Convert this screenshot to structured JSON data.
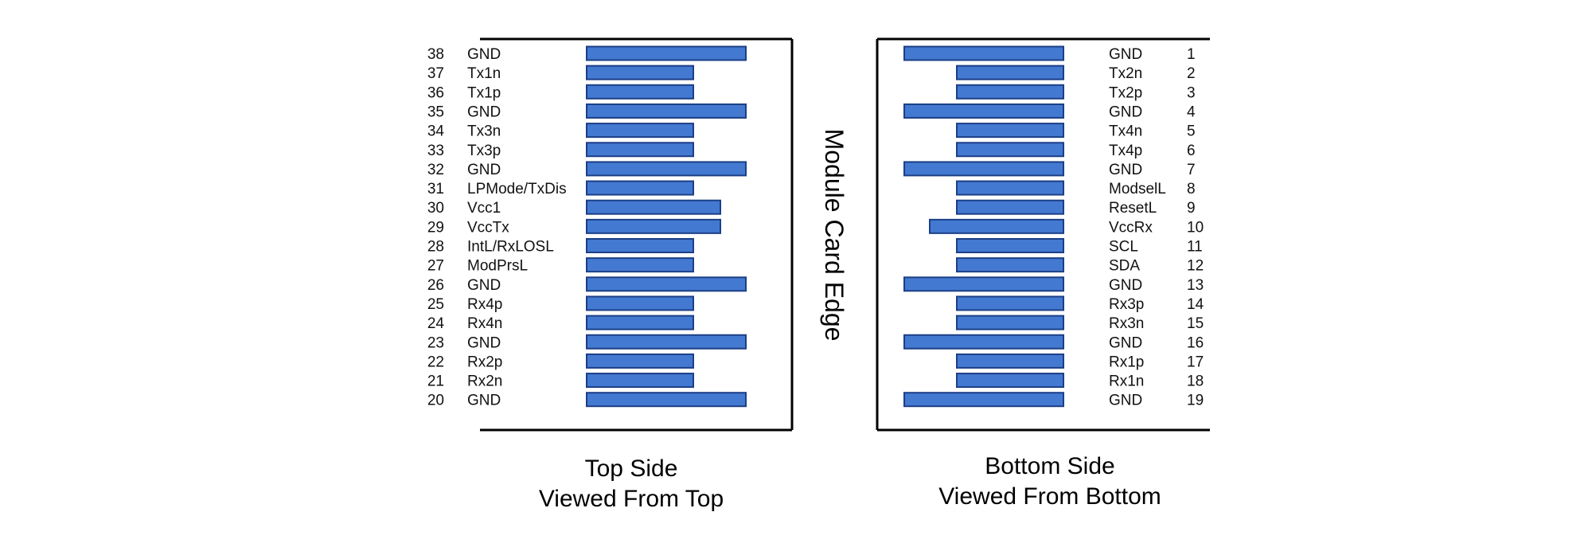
{
  "edge_label": "Module Card Edge",
  "top_side": {
    "caption_line1": "Top Side",
    "caption_line2": "Viewed From Top",
    "pins": [
      {
        "number": "38",
        "name": "GND",
        "pad": "long"
      },
      {
        "number": "37",
        "name": "Tx1n",
        "pad": "short"
      },
      {
        "number": "36",
        "name": "Tx1p",
        "pad": "short"
      },
      {
        "number": "35",
        "name": "GND",
        "pad": "long"
      },
      {
        "number": "34",
        "name": "Tx3n",
        "pad": "short"
      },
      {
        "number": "33",
        "name": "Tx3p",
        "pad": "short"
      },
      {
        "number": "32",
        "name": "GND",
        "pad": "long"
      },
      {
        "number": "31",
        "name": "LPMode/TxDis",
        "pad": "short"
      },
      {
        "number": "30",
        "name": "Vcc1",
        "pad": "medium"
      },
      {
        "number": "29",
        "name": "VccTx",
        "pad": "medium"
      },
      {
        "number": "28",
        "name": "IntL/RxLOSL",
        "pad": "short"
      },
      {
        "number": "27",
        "name": "ModPrsL",
        "pad": "short"
      },
      {
        "number": "26",
        "name": "GND",
        "pad": "long"
      },
      {
        "number": "25",
        "name": "Rx4p",
        "pad": "short"
      },
      {
        "number": "24",
        "name": "Rx4n",
        "pad": "short"
      },
      {
        "number": "23",
        "name": "GND",
        "pad": "long"
      },
      {
        "number": "22",
        "name": "Rx2p",
        "pad": "short"
      },
      {
        "number": "21",
        "name": "Rx2n",
        "pad": "short"
      },
      {
        "number": "20",
        "name": "GND",
        "pad": "long"
      }
    ]
  },
  "bottom_side": {
    "caption_line1": "Bottom Side",
    "caption_line2": "Viewed From Bottom",
    "pins": [
      {
        "number": "1",
        "name": "GND",
        "pad": "long"
      },
      {
        "number": "2",
        "name": "Tx2n",
        "pad": "short"
      },
      {
        "number": "3",
        "name": "Tx2p",
        "pad": "short"
      },
      {
        "number": "4",
        "name": "GND",
        "pad": "long"
      },
      {
        "number": "5",
        "name": "Tx4n",
        "pad": "short"
      },
      {
        "number": "6",
        "name": "Tx4p",
        "pad": "short"
      },
      {
        "number": "7",
        "name": "GND",
        "pad": "long"
      },
      {
        "number": "8",
        "name": "ModselL",
        "pad": "short"
      },
      {
        "number": "9",
        "name": "ResetL",
        "pad": "short"
      },
      {
        "number": "10",
        "name": "VccRx",
        "pad": "medium"
      },
      {
        "number": "11",
        "name": "SCL",
        "pad": "short"
      },
      {
        "number": "12",
        "name": "SDA",
        "pad": "short"
      },
      {
        "number": "13",
        "name": "GND",
        "pad": "long"
      },
      {
        "number": "14",
        "name": "Rx3p",
        "pad": "short"
      },
      {
        "number": "15",
        "name": "Rx3n",
        "pad": "short"
      },
      {
        "number": "16",
        "name": "GND",
        "pad": "long"
      },
      {
        "number": "17",
        "name": "Rx1p",
        "pad": "short"
      },
      {
        "number": "18",
        "name": "Rx1n",
        "pad": "short"
      },
      {
        "number": "19",
        "name": "GND",
        "pad": "long"
      }
    ]
  },
  "colors": {
    "pad_fill": "#4479d1",
    "pad_stroke": "#1b3f86",
    "frame": "#000000"
  }
}
